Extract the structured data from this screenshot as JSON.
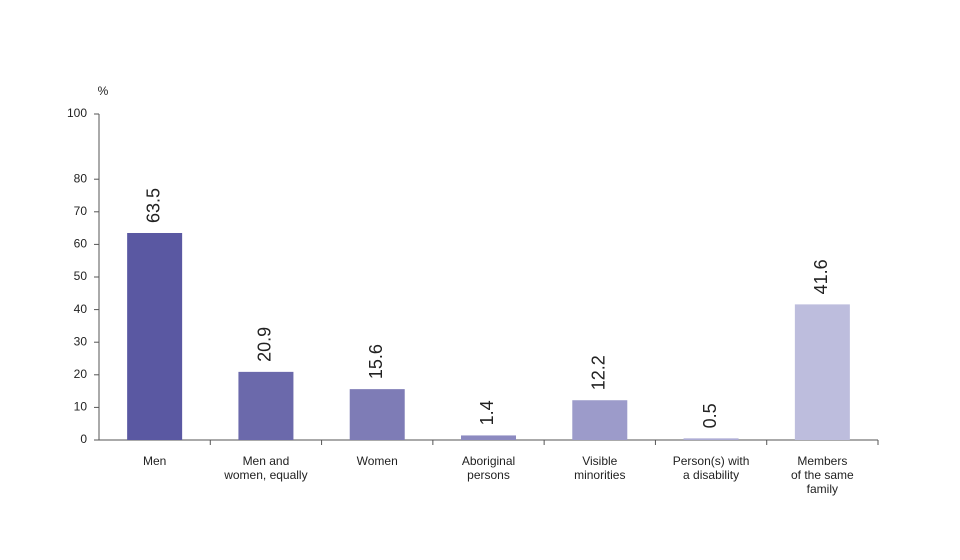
{
  "chart_data": {
    "type": "bar",
    "y_label": "%",
    "categories": [
      "Men",
      "Men and\nwomen, equally",
      "Women",
      "Aboriginal\npersons",
      "Visible\nminorities",
      "Person(s) with\na disability",
      "Members\nof the same\nfamily"
    ],
    "values": [
      63.5,
      20.9,
      15.6,
      1.4,
      12.2,
      0.5,
      41.6
    ],
    "colors": [
      "#5a58a2",
      "#6b69ab",
      "#7e7cb6",
      "#8c8ac0",
      "#9c9bca",
      "#adacd4",
      "#bdbddd"
    ],
    "ylim": [
      0,
      100
    ],
    "yticks": [
      0,
      10,
      20,
      30,
      40,
      50,
      60,
      70,
      80,
      100
    ]
  }
}
